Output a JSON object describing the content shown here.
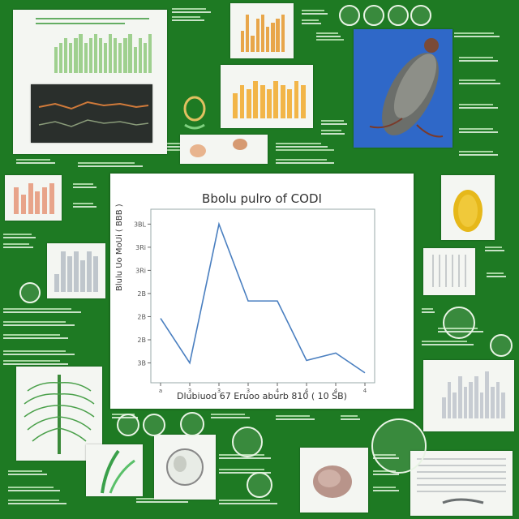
{
  "poster": {
    "background_color": "#1e7a23",
    "accent_green": "#bfe7b8"
  },
  "chart_data": {
    "type": "line",
    "title": "Bbolu pulro of CODI",
    "xlabel": "Dlubiuod 67 Eruoo aburb 810 ( 10 SB)",
    "ylabel": "Blulu Uo MoUi ( BBB )",
    "x": [
      1,
      2,
      3,
      4,
      5,
      6,
      7,
      8
    ],
    "y": [
      2.6,
      0.8,
      6.4,
      3.3,
      3.3,
      0.9,
      1.2,
      0.4
    ],
    "ylim": [
      0,
      7
    ],
    "ytick_labels": [
      "3B",
      "2B",
      "2B",
      "2B",
      "3Ri",
      "3Ri",
      "3BL"
    ],
    "xtick_labels": [
      "a",
      "3",
      "3",
      "3",
      "4",
      "4",
      "4",
      "4"
    ],
    "color": "#4a7fc0",
    "grid": false
  },
  "mini_charts": [
    {
      "name": "top-left",
      "values": [
        6,
        7,
        8,
        7,
        8,
        9,
        7,
        8,
        9,
        8,
        7,
        9,
        8,
        7,
        8,
        9,
        6,
        8,
        7,
        9
      ],
      "color": "#9fd08f"
    },
    {
      "name": "top-center",
      "values": [
        5,
        9,
        4,
        8,
        9,
        6,
        7,
        8,
        9
      ],
      "color": "#e8a64a"
    },
    {
      "name": "center-orange",
      "values": [
        6,
        8,
        7,
        9,
        8,
        7,
        9,
        8,
        7,
        9,
        8
      ],
      "color": "#f2b548"
    },
    {
      "name": "left-small",
      "values": [
        7,
        5,
        8,
        6,
        7,
        8
      ],
      "color": "#e8a48a"
    },
    {
      "name": "left-gray",
      "values": [
        4,
        9,
        8,
        9,
        7,
        9,
        8
      ],
      "color": "#bfc6cc"
    },
    {
      "name": "right-gray",
      "values": [
        4,
        7,
        5,
        8,
        6,
        7,
        8,
        5,
        9,
        6,
        7,
        5
      ],
      "color": "#c7ccd2"
    }
  ]
}
